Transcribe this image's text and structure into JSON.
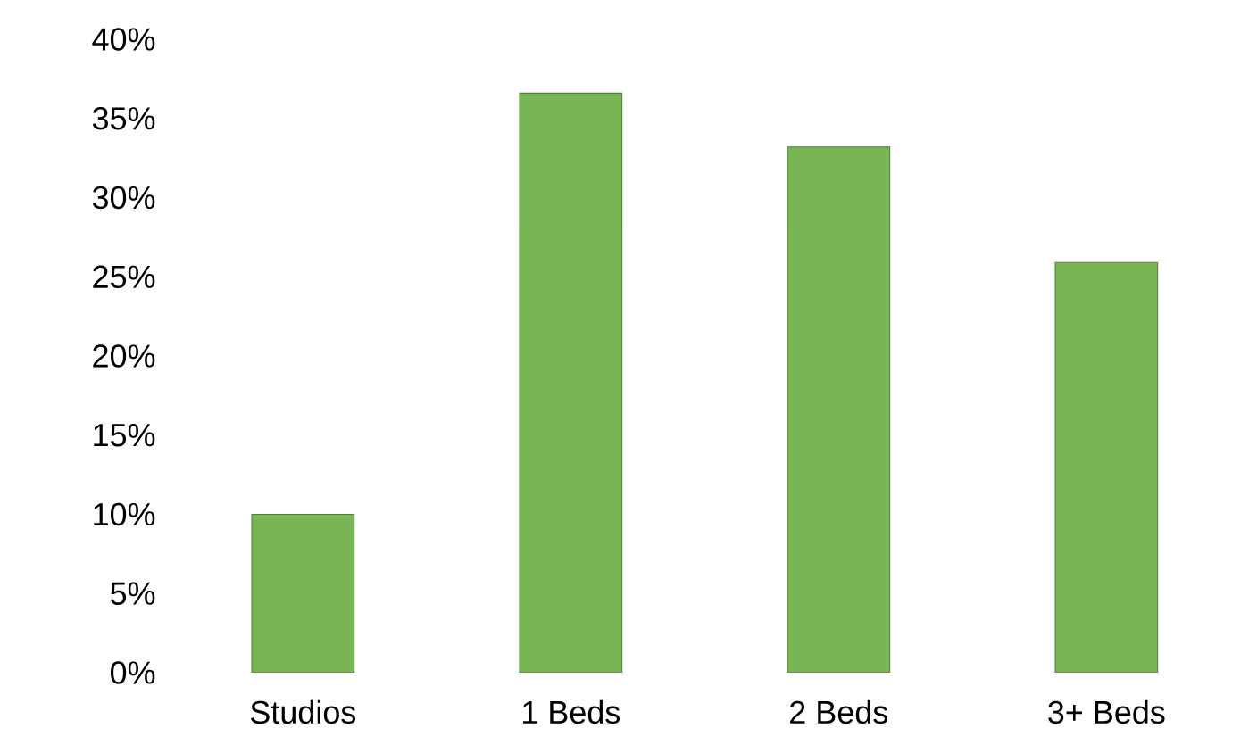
{
  "chart_data": {
    "type": "bar",
    "categories": [
      "Studios",
      "1 Beds",
      "2 Beds",
      "3+ Beds"
    ],
    "values": [
      0.1,
      0.366,
      0.332,
      0.259
    ],
    "color": "#77b555",
    "ylim": [
      0,
      0.4
    ],
    "yticks": [
      {
        "value": 0,
        "label": "0%"
      },
      {
        "value": 0.05,
        "label": "5%"
      },
      {
        "value": 0.1,
        "label": "10%"
      },
      {
        "value": 0.15,
        "label": "15%"
      },
      {
        "value": 0.2,
        "label": "20%"
      },
      {
        "value": 0.25,
        "label": "25%"
      },
      {
        "value": 0.3,
        "label": "30%"
      },
      {
        "value": 0.35,
        "label": "35%"
      },
      {
        "value": 0.4,
        "label": "40%"
      }
    ]
  }
}
